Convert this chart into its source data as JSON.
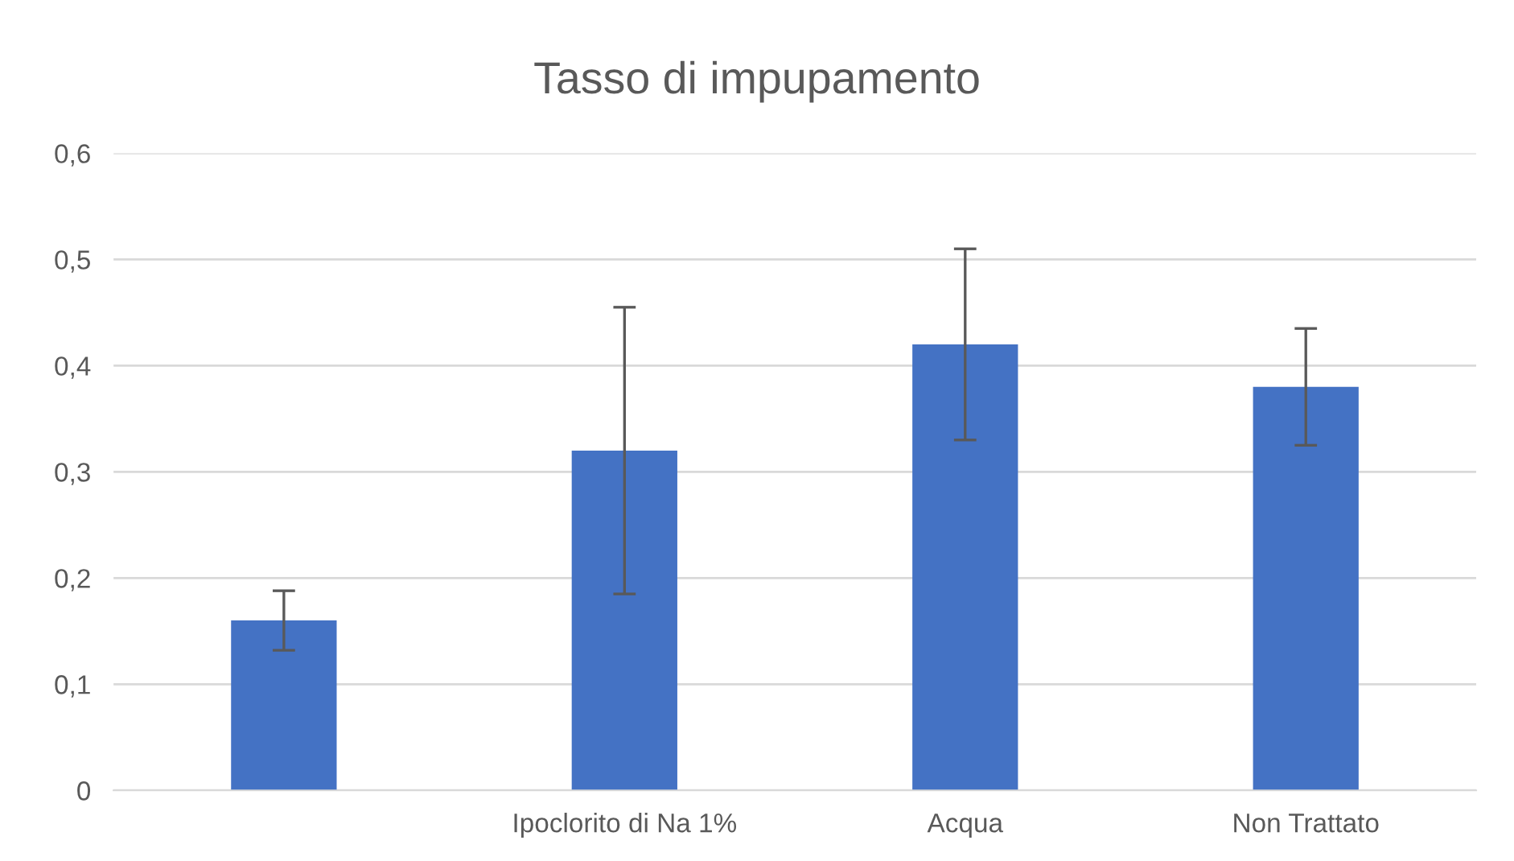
{
  "chart_data": {
    "type": "bar",
    "title": "Tasso di impupamento",
    "categories": [
      null,
      "Ipoclorito di Na 1%",
      "Acqua",
      "Non Trattato"
    ],
    "values": [
      0.16,
      0.32,
      0.42,
      0.38
    ],
    "errors": [
      0.028,
      0.135,
      0.09,
      0.055
    ],
    "color": "#4472c4",
    "ylim": [
      0,
      0.6
    ],
    "yticks": [
      {
        "value": 0,
        "label": "0"
      },
      {
        "value": 0.1,
        "label": "0,1"
      },
      {
        "value": 0.2,
        "label": "0,2"
      },
      {
        "value": 0.3,
        "label": "0,3"
      },
      {
        "value": 0.4,
        "label": "0,4"
      },
      {
        "value": 0.5,
        "label": "0,5"
      },
      {
        "value": 0.6,
        "label": "0,6"
      }
    ],
    "grid": "y"
  }
}
